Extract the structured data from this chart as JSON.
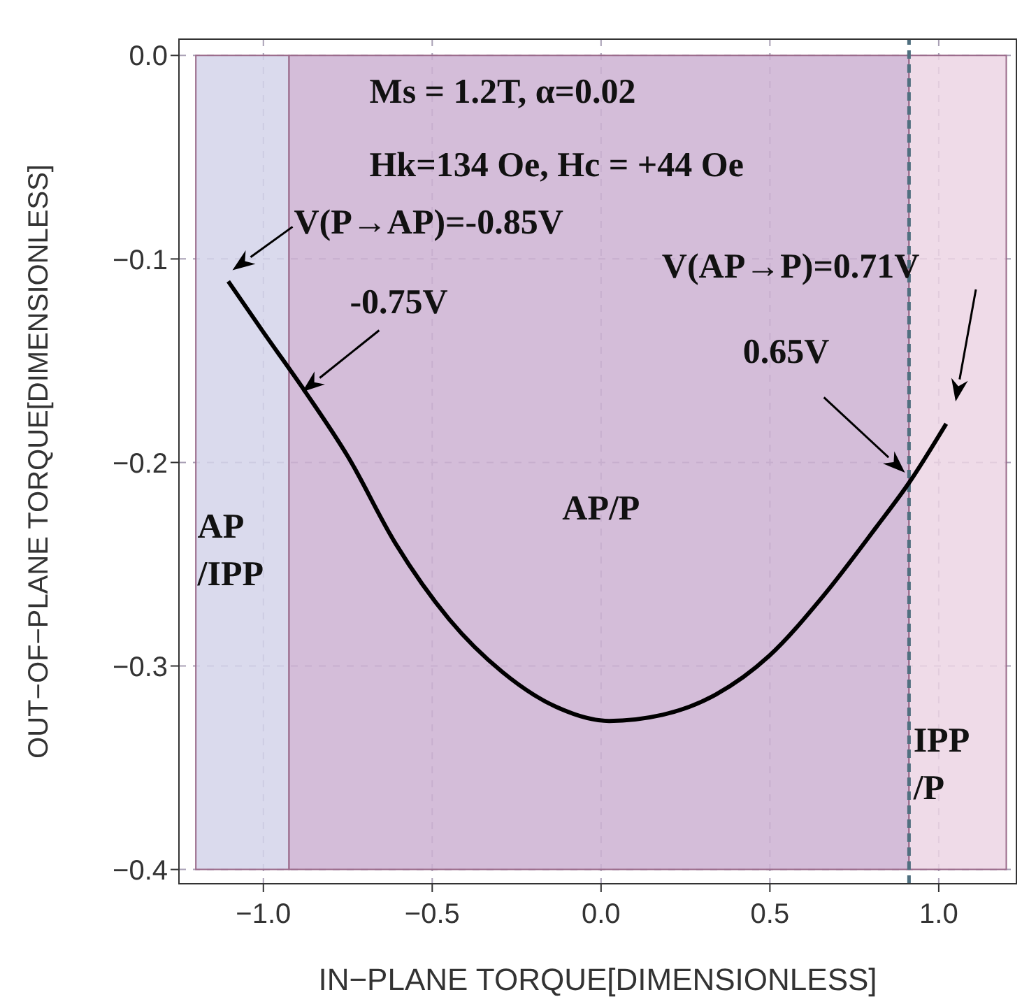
{
  "chart_data": {
    "type": "line",
    "xlabel": "IN−PLANE TORQUE[DIMENSIONLESS]",
    "ylabel": "OUT−OF−PLANE TORQUE[DIMENSIONLESS]",
    "x": [
      -1.104,
      -1.0,
      -0.877,
      -0.75,
      -0.608,
      -0.45,
      -0.292,
      -0.134,
      0.024,
      0.182,
      0.34,
      0.498,
      0.656,
      0.814,
      0.912,
      1.022
    ],
    "series": [
      {
        "color": "#000000",
        "values": [
          -0.111,
          -0.136,
          -0.165,
          -0.197,
          -0.24,
          -0.277,
          -0.303,
          -0.32,
          -0.327,
          -0.324,
          -0.314,
          -0.295,
          -0.266,
          -0.232,
          -0.21,
          -0.181
        ]
      }
    ],
    "xlim": [
      -1.25,
      1.23
    ],
    "ylim": [
      -0.407,
      0.008
    ],
    "xticks": [
      {
        "value": -1,
        "label": "−1.0"
      },
      {
        "value": -0.5,
        "label": "−0.5"
      },
      {
        "value": 0,
        "label": "0.0"
      },
      {
        "value": 0.5,
        "label": "0.5"
      },
      {
        "value": 1,
        "label": "1.0"
      }
    ],
    "yticks": [
      {
        "value": 0,
        "label": "0.0"
      },
      {
        "value": -0.1,
        "label": "−0.1"
      },
      {
        "value": -0.2,
        "label": "−0.2"
      },
      {
        "value": -0.3,
        "label": "−0.3"
      },
      {
        "value": -0.4,
        "label": "−0.4"
      }
    ],
    "grid": true,
    "marker": "none",
    "line_style": "solid",
    "bands": [
      {
        "axis": "x",
        "from": -1.2,
        "to": -0.924,
        "label": "AP\n/IPP",
        "color": "#d3d3ea"
      },
      {
        "axis": "x",
        "from": -0.924,
        "to": 0.912,
        "label": "AP/P",
        "color": "#cdb2d2"
      },
      {
        "axis": "x",
        "from": 0.912,
        "to": 1.2,
        "label": "IPP\n/P",
        "color": "#ecd5e4"
      }
    ],
    "ref_lines": [
      {
        "axis": "x",
        "value": 0.912,
        "color": "#4f6f7f",
        "line_style": "dashed"
      }
    ],
    "annotations": [
      "Ms = 1.2T, α=0.02",
      "Hk=134 Oe, Hc = +44 Oe",
      {
        "text": "V(P→AP)=-0.85V",
        "x": -1.104,
        "y": -0.111
      },
      {
        "text": "-0.75V",
        "x": -0.889,
        "y": -0.166
      },
      "0.65V",
      "V(AP→P)=0.71V"
    ]
  }
}
